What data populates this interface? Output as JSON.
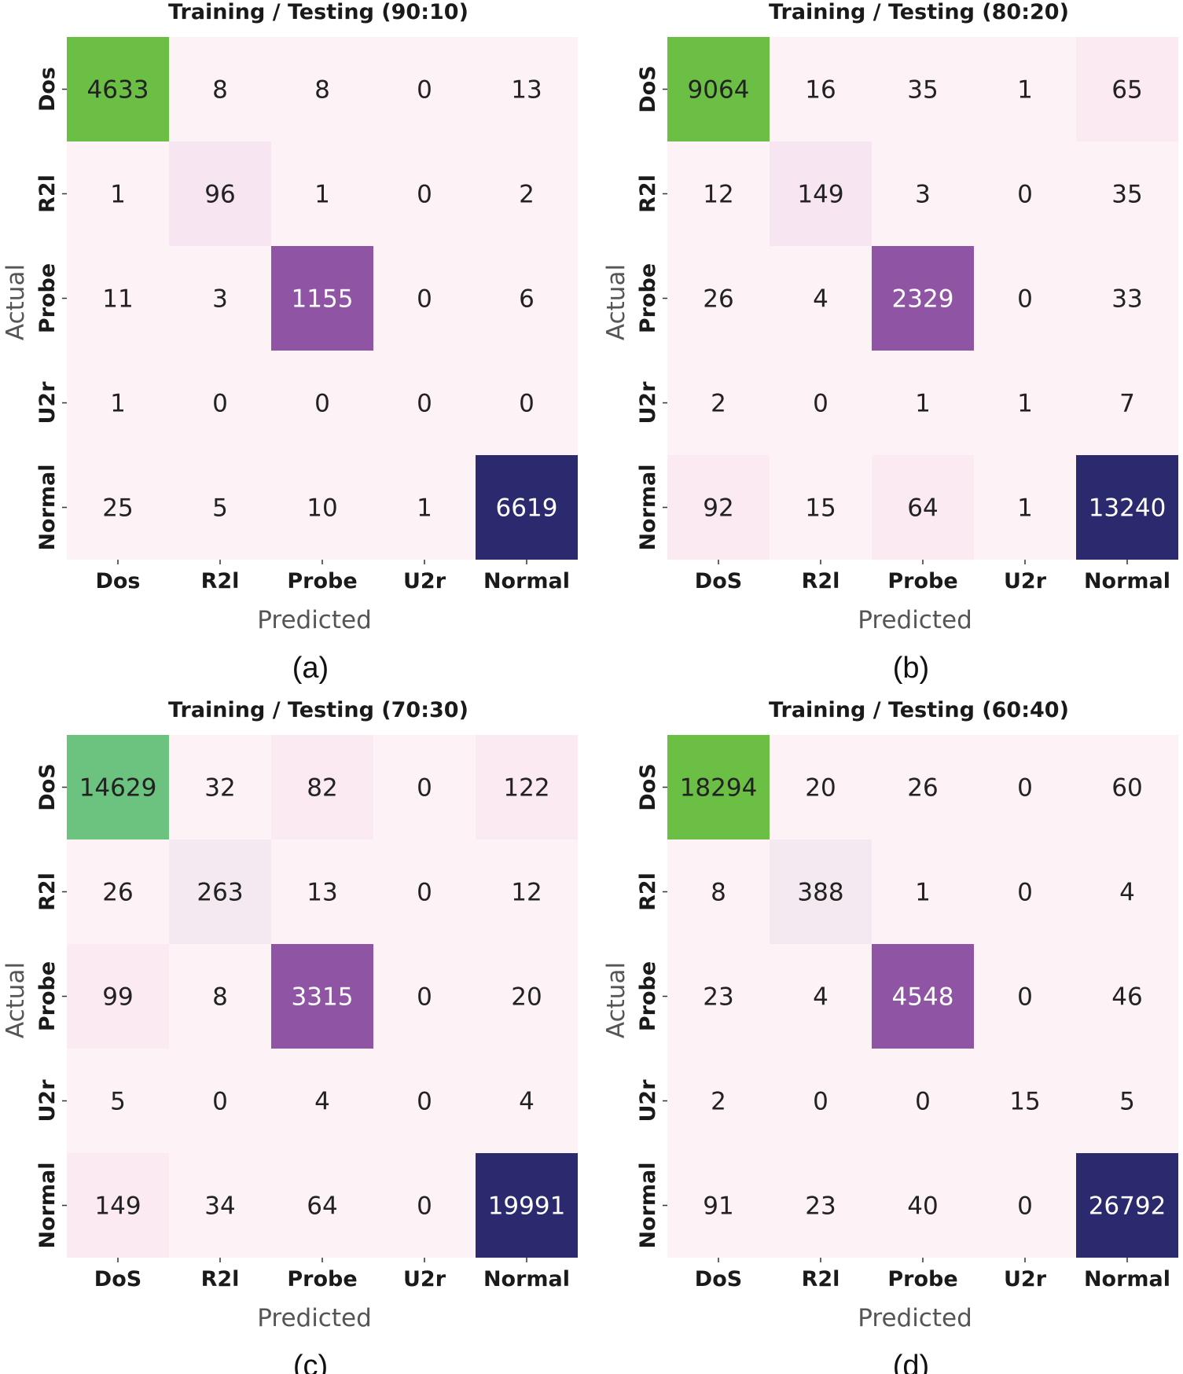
{
  "figure": {
    "panels": [
      {
        "caption": "(a)"
      },
      {
        "caption": "(b)"
      },
      {
        "caption": "(c)"
      },
      {
        "caption": "(d)"
      }
    ]
  },
  "colors": {
    "background": "#fdf3f7",
    "dos_high": "#6bbf45",
    "dos_mid": "#6cc27f",
    "r2l_light": "#f7e6f2",
    "r2l_light2": "#f5e9f1",
    "probe": "#8f55a4",
    "normal": "#2b2a6f",
    "faint": "#fbeaf1",
    "text_dark": "#222222",
    "text_light": "#ffffff"
  },
  "chart_data": [
    {
      "type": "heatmap",
      "title": "Training / Testing (90:10)",
      "xlabel": "Predicted",
      "ylabel": "Actual",
      "x_categories": [
        "Dos",
        "R2l",
        "Probe",
        "U2r",
        "Normal"
      ],
      "y_categories": [
        "Dos",
        "R2l",
        "Probe",
        "U2r",
        "Normal"
      ],
      "matrix": [
        [
          4633,
          8,
          8,
          0,
          13
        ],
        [
          1,
          96,
          1,
          0,
          2
        ],
        [
          11,
          3,
          1155,
          0,
          6
        ],
        [
          1,
          0,
          0,
          0,
          0
        ],
        [
          25,
          5,
          10,
          1,
          6619
        ]
      ],
      "cell_colors": [
        [
          "#6bbf45",
          "#fdf3f7",
          "#fdf3f7",
          "#fdf3f7",
          "#fdf3f7"
        ],
        [
          "#fdf3f7",
          "#f7e6f2",
          "#fdf3f7",
          "#fdf3f7",
          "#fdf3f7"
        ],
        [
          "#fdf3f7",
          "#fdf3f7",
          "#8f55a4",
          "#fdf3f7",
          "#fdf3f7"
        ],
        [
          "#fdf3f7",
          "#fdf3f7",
          "#fdf3f7",
          "#fdf3f7",
          "#fdf3f7"
        ],
        [
          "#fdf3f7",
          "#fdf3f7",
          "#fdf3f7",
          "#fdf3f7",
          "#2b2a6f"
        ]
      ]
    },
    {
      "type": "heatmap",
      "title": "Training / Testing (80:20)",
      "xlabel": "Predicted",
      "ylabel": "Actual",
      "x_categories": [
        "DoS",
        "R2l",
        "Probe",
        "U2r",
        "Normal"
      ],
      "y_categories": [
        "DoS",
        "R2l",
        "Probe",
        "U2r",
        "Normal"
      ],
      "matrix": [
        [
          9064,
          16,
          35,
          1,
          65
        ],
        [
          12,
          149,
          3,
          0,
          35
        ],
        [
          26,
          4,
          2329,
          0,
          33
        ],
        [
          2,
          0,
          1,
          1,
          7
        ],
        [
          92,
          15,
          64,
          1,
          13240
        ]
      ],
      "cell_colors": [
        [
          "#6bbf45",
          "#fdf3f7",
          "#fdf3f7",
          "#fdf3f7",
          "#fbeaf1"
        ],
        [
          "#fdf3f7",
          "#f7e6f2",
          "#fdf3f7",
          "#fdf3f7",
          "#fdf3f7"
        ],
        [
          "#fdf3f7",
          "#fdf3f7",
          "#8f55a4",
          "#fdf3f7",
          "#fdf3f7"
        ],
        [
          "#fdf3f7",
          "#fdf3f7",
          "#fdf3f7",
          "#fdf3f7",
          "#fdf3f7"
        ],
        [
          "#fbeaf1",
          "#fdf3f7",
          "#fbeaf1",
          "#fdf3f7",
          "#2b2a6f"
        ]
      ]
    },
    {
      "type": "heatmap",
      "title": "Training / Testing (70:30)",
      "xlabel": "Predicted",
      "ylabel": "Actual",
      "x_categories": [
        "DoS",
        "R2l",
        "Probe",
        "U2r",
        "Normal"
      ],
      "y_categories": [
        "DoS",
        "R2l",
        "Probe",
        "U2r",
        "Normal"
      ],
      "matrix": [
        [
          14629,
          32,
          82,
          0,
          122
        ],
        [
          26,
          263,
          13,
          0,
          12
        ],
        [
          99,
          8,
          3315,
          0,
          20
        ],
        [
          5,
          0,
          4,
          0,
          4
        ],
        [
          149,
          34,
          64,
          0,
          19991
        ]
      ],
      "cell_colors": [
        [
          "#6cc27f",
          "#fdf3f7",
          "#fbeaf1",
          "#fdf3f7",
          "#fbeaf1"
        ],
        [
          "#fdf3f7",
          "#f5e9f1",
          "#fdf3f7",
          "#fdf3f7",
          "#fdf3f7"
        ],
        [
          "#fbeaf1",
          "#fdf3f7",
          "#8f55a4",
          "#fdf3f7",
          "#fdf3f7"
        ],
        [
          "#fdf3f7",
          "#fdf3f7",
          "#fdf3f7",
          "#fdf3f7",
          "#fdf3f7"
        ],
        [
          "#fbeaf1",
          "#fdf3f7",
          "#fdf3f7",
          "#fdf3f7",
          "#2b2a6f"
        ]
      ]
    },
    {
      "type": "heatmap",
      "title": "Training / Testing (60:40)",
      "xlabel": "Predicted",
      "ylabel": "Actual",
      "x_categories": [
        "DoS",
        "R2l",
        "Probe",
        "U2r",
        "Normal"
      ],
      "y_categories": [
        "DoS",
        "R2l",
        "Probe",
        "U2r",
        "Normal"
      ],
      "matrix": [
        [
          18294,
          20,
          26,
          0,
          60
        ],
        [
          8,
          388,
          1,
          0,
          4
        ],
        [
          23,
          4,
          4548,
          0,
          46
        ],
        [
          2,
          0,
          0,
          15,
          5
        ],
        [
          91,
          23,
          40,
          0,
          26792
        ]
      ],
      "cell_colors": [
        [
          "#6bbf45",
          "#fdf3f7",
          "#fdf3f7",
          "#fdf3f7",
          "#fdf3f7"
        ],
        [
          "#fdf3f7",
          "#f5e9f1",
          "#fdf3f7",
          "#fdf3f7",
          "#fdf3f7"
        ],
        [
          "#fdf3f7",
          "#fdf3f7",
          "#8f55a4",
          "#fdf3f7",
          "#fdf3f7"
        ],
        [
          "#fdf3f7",
          "#fdf3f7",
          "#fdf3f7",
          "#fdf3f7",
          "#fdf3f7"
        ],
        [
          "#fdf3f7",
          "#fdf3f7",
          "#fdf3f7",
          "#fdf3f7",
          "#2b2a6f"
        ]
      ]
    }
  ]
}
